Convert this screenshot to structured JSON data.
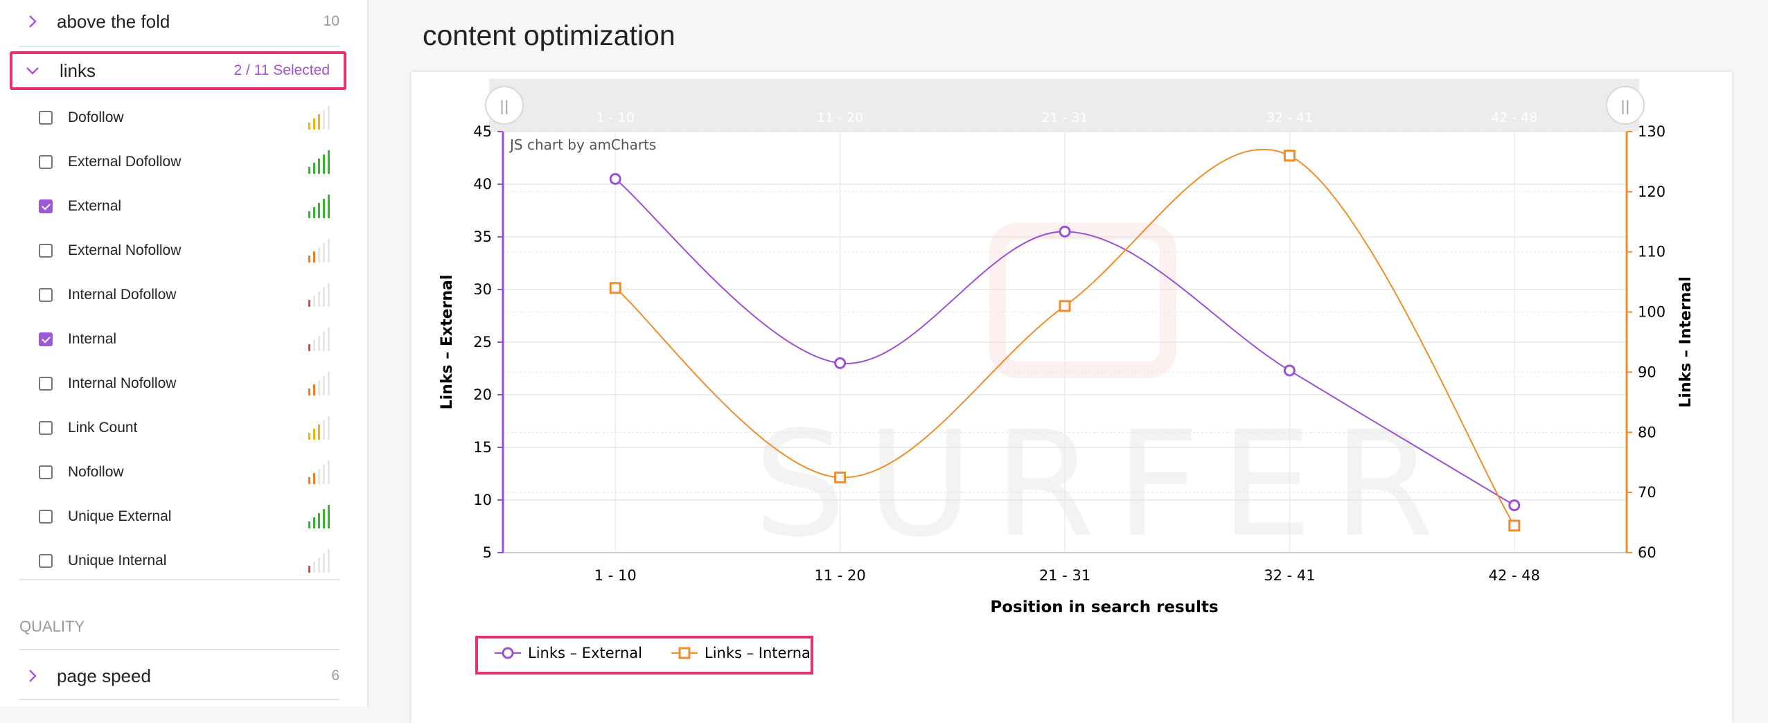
{
  "sidebar": {
    "group_above": {
      "label": "above the fold",
      "count": "10"
    },
    "group_links": {
      "label": "links",
      "selected": "2 / 11 Selected"
    },
    "items": [
      {
        "label": "Dofollow",
        "checked": false,
        "strength": 3,
        "color": "#f0b400"
      },
      {
        "label": "External Dofollow",
        "checked": false,
        "strength": 5,
        "color": "#2dbb2d"
      },
      {
        "label": "External",
        "checked": true,
        "strength": 5,
        "color": "#2dbb2d"
      },
      {
        "label": "External Nofollow",
        "checked": false,
        "strength": 2,
        "color": "#f47a1f"
      },
      {
        "label": "Internal Dofollow",
        "checked": false,
        "strength": 1,
        "color": "#e64040"
      },
      {
        "label": "Internal",
        "checked": true,
        "strength": 1,
        "color": "#e64040"
      },
      {
        "label": "Internal Nofollow",
        "checked": false,
        "strength": 2,
        "color": "#f47a1f"
      },
      {
        "label": "Link Count",
        "checked": false,
        "strength": 3,
        "color": "#f0b400"
      },
      {
        "label": "Nofollow",
        "checked": false,
        "strength": 2,
        "color": "#f47a1f"
      },
      {
        "label": "Unique External",
        "checked": false,
        "strength": 5,
        "color": "#2dbb2d"
      },
      {
        "label": "Unique Internal",
        "checked": false,
        "strength": 1,
        "color": "#e64040"
      }
    ],
    "section_quality": "QUALITY",
    "group_speed": {
      "label": "page speed",
      "count": "6"
    }
  },
  "main": {
    "title": "content optimization"
  },
  "chart_data": {
    "type": "line",
    "categories": [
      "1 - 10",
      "11 - 20",
      "21 - 31",
      "32 - 41",
      "42 - 48"
    ],
    "series": [
      {
        "name": "Links – External",
        "axis": "left",
        "color": "#9b4fd9",
        "marker": "circle",
        "values": [
          40.5,
          23,
          35.5,
          22.3,
          9.5
        ]
      },
      {
        "name": "Links – Internal",
        "axis": "right",
        "color": "#f28c28",
        "marker": "square",
        "values": [
          104,
          72.5,
          101,
          126,
          64.5
        ]
      }
    ],
    "xlabel": "Position in search results",
    "ylabel_left": "Links – External",
    "ylabel_right": "Links – Internal",
    "ylim_left": [
      5,
      45
    ],
    "yticks_left": [
      5,
      10,
      15,
      20,
      25,
      30,
      35,
      40,
      45
    ],
    "ylim_right": [
      60,
      130
    ],
    "yticks_right": [
      60,
      70,
      80,
      90,
      100,
      110,
      120,
      130
    ],
    "credit": "JS chart by amCharts",
    "watermark": "SURFER",
    "grid": true,
    "legend_position": "bottom-left",
    "scrollbar_handle_label": "||"
  }
}
